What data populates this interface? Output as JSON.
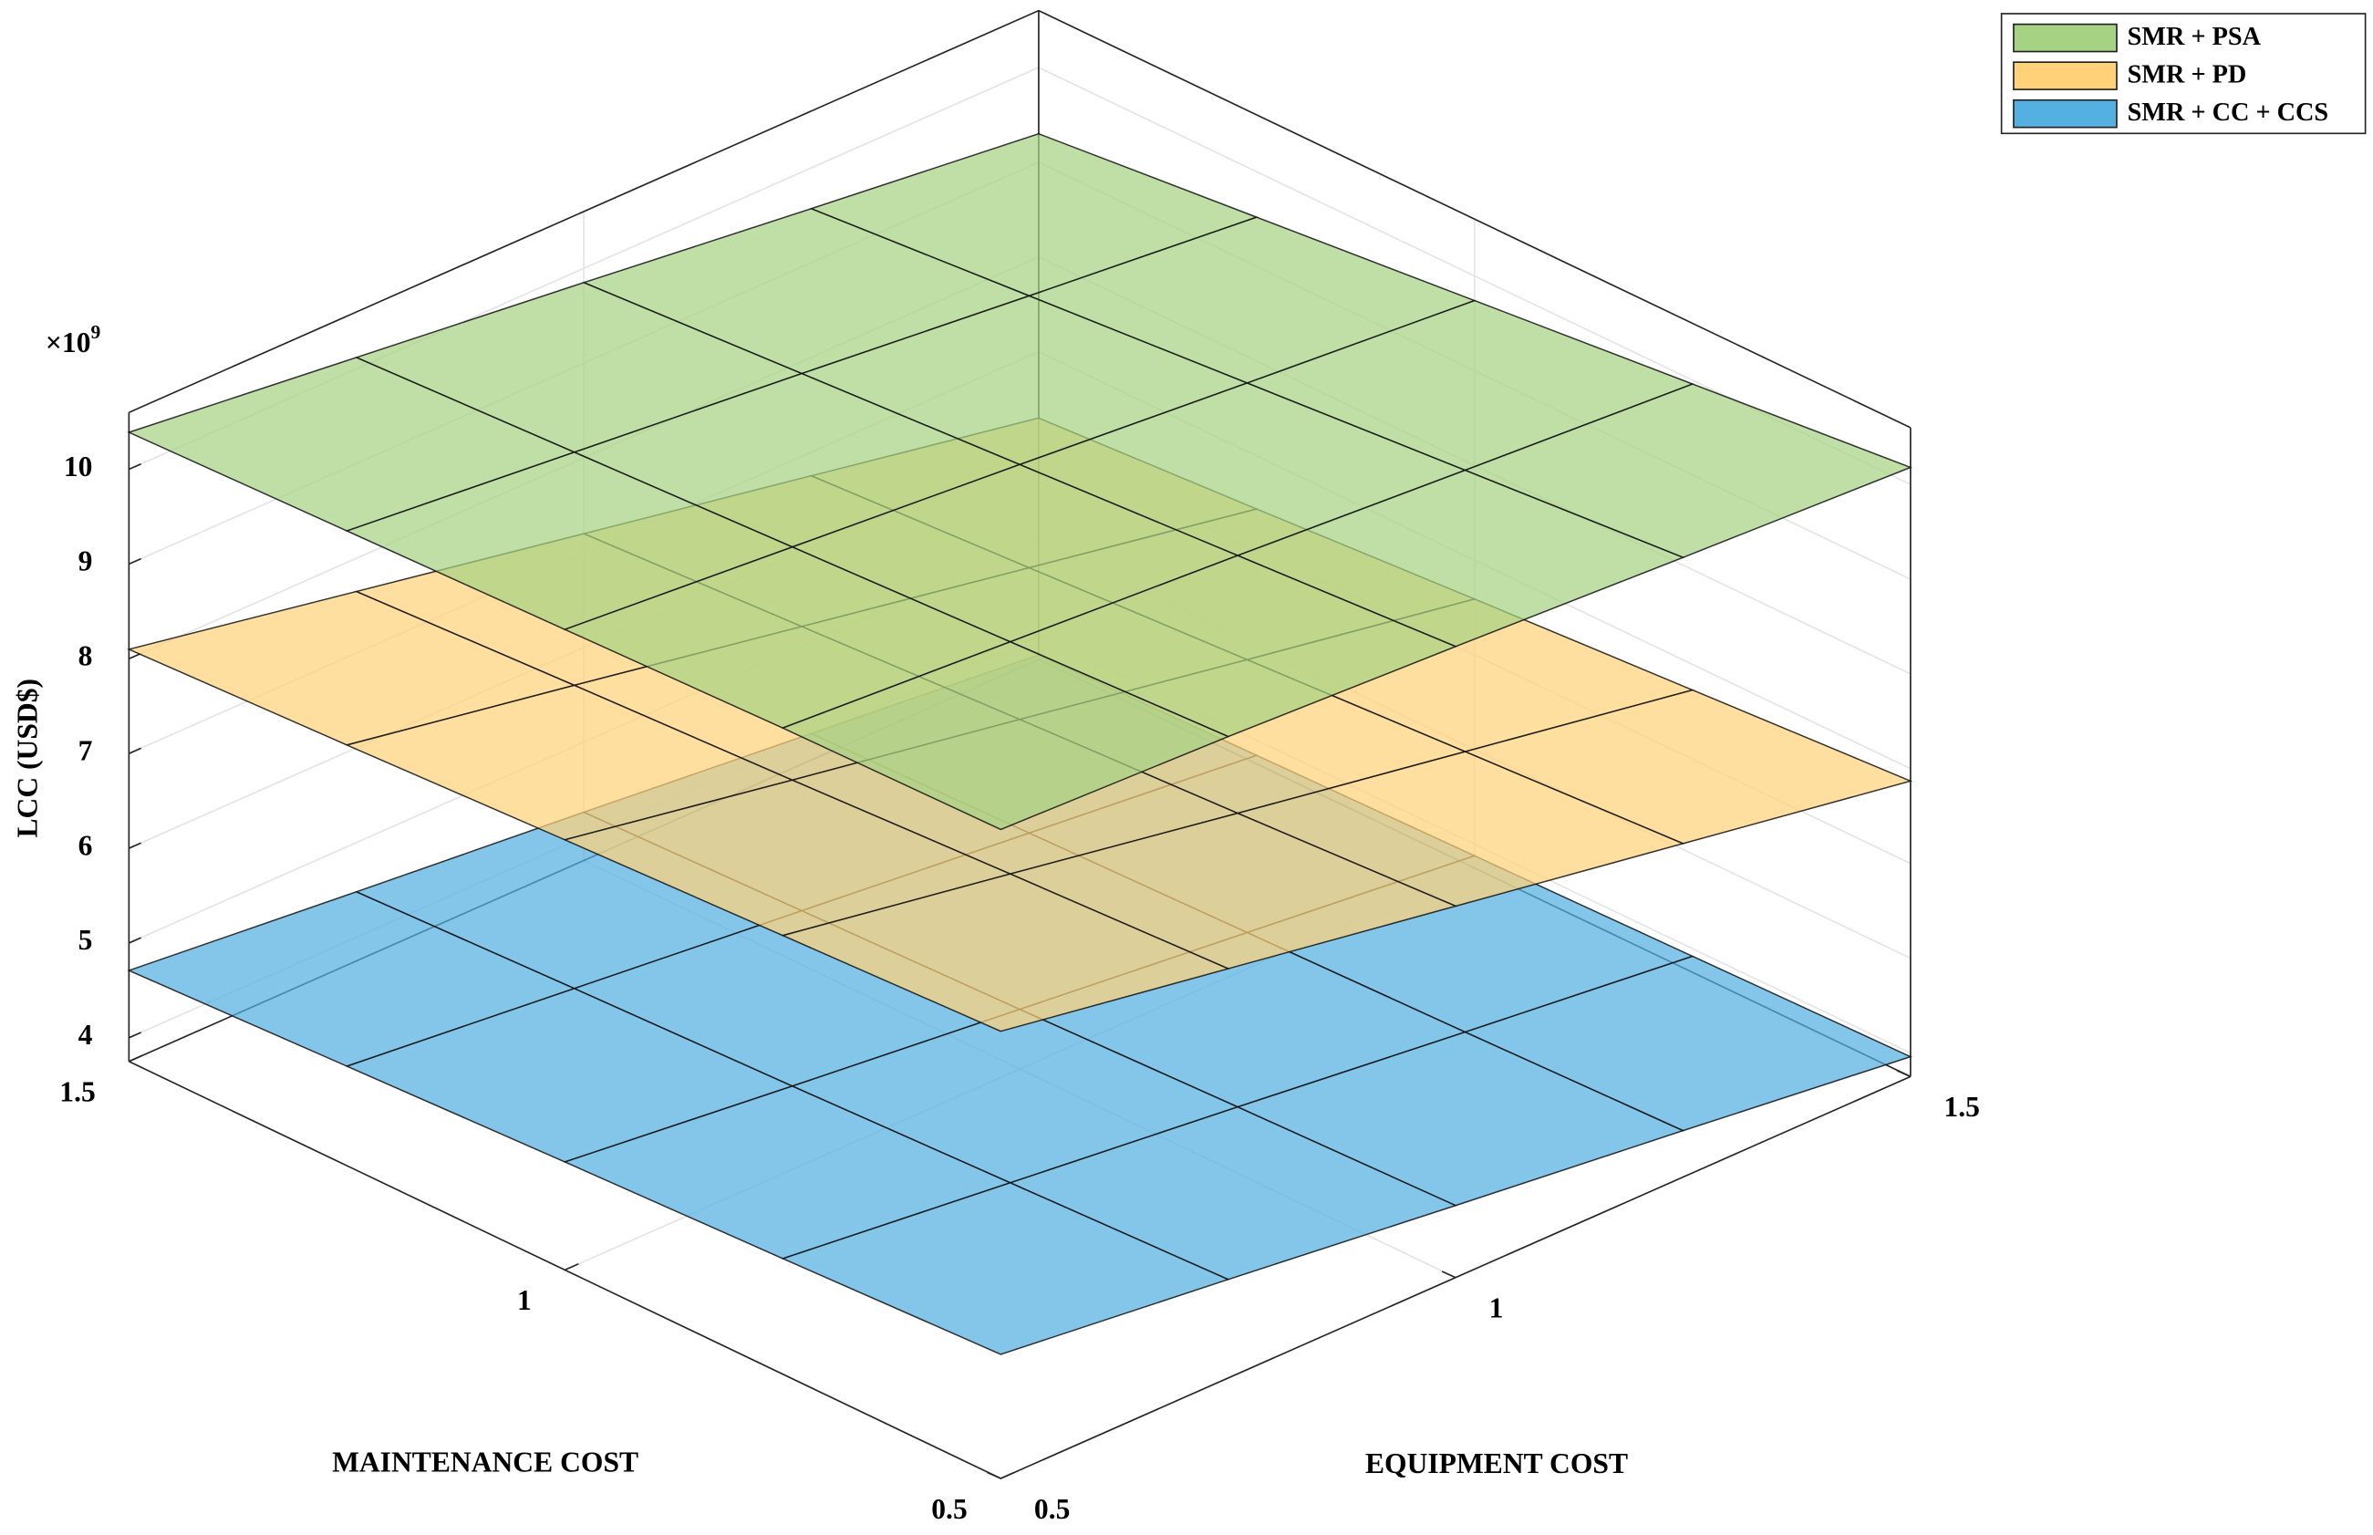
{
  "chart_data": {
    "type": "surface3d",
    "x_label": "EQUIPMENT COST",
    "y_label": "MAINTENANCE COST",
    "z_label": "LCC (USD$)",
    "z_multiplier": "×10",
    "z_exponent": "9",
    "x": [
      0.5,
      0.75,
      1,
      1.25,
      1.5
    ],
    "y": [
      0.5,
      0.75,
      1,
      1.25,
      1.5
    ],
    "xlim": [
      0.5,
      1.5
    ],
    "ylim": [
      0.5,
      1.5
    ],
    "zlim": [
      3.75,
      10.6
    ],
    "xticks": [
      0.5,
      1,
      1.5
    ],
    "yticks": [
      0.5,
      1,
      1.5
    ],
    "zticks": [
      4,
      5,
      6,
      7,
      8,
      9,
      10
    ],
    "grid": true,
    "series": [
      {
        "name": "SMR + PSA",
        "color": "#a6d283",
        "z": [
          [
            10.6,
            10.52,
            10.41,
            10.29,
            10.18
          ],
          [
            10.57,
            10.42,
            10.27,
            10.11,
            9.96
          ],
          [
            10.51,
            10.32,
            10.13,
            9.93,
            9.74
          ],
          [
            10.45,
            10.22,
            9.99,
            9.75,
            9.52
          ],
          [
            10.39,
            10.12,
            9.85,
            9.57,
            9.3
          ]
        ]
      },
      {
        "name": "SMR + PD",
        "color": "#ffd27a",
        "z": [
          [
            8.47,
            8.07,
            7.67,
            7.27,
            6.87
          ],
          [
            8.38,
            7.97,
            7.55,
            7.14,
            6.73
          ],
          [
            8.29,
            7.86,
            7.44,
            7.01,
            6.59
          ],
          [
            8.19,
            7.76,
            7.32,
            6.88,
            6.44
          ],
          [
            8.1,
            7.65,
            7.2,
            6.75,
            6.3
          ]
        ]
      },
      {
        "name": "SMR + CC + CCS",
        "color": "#55b0e2",
        "z": [
          [
            5.06,
            4.79,
            4.51,
            4.24,
            3.96
          ],
          [
            4.97,
            4.71,
            4.45,
            4.18,
            3.92
          ],
          [
            4.89,
            4.63,
            4.38,
            4.13,
            3.88
          ],
          [
            4.8,
            4.56,
            4.32,
            4.08,
            3.84
          ],
          [
            4.71,
            4.48,
            4.26,
            4.03,
            3.8
          ]
        ]
      }
    ]
  }
}
